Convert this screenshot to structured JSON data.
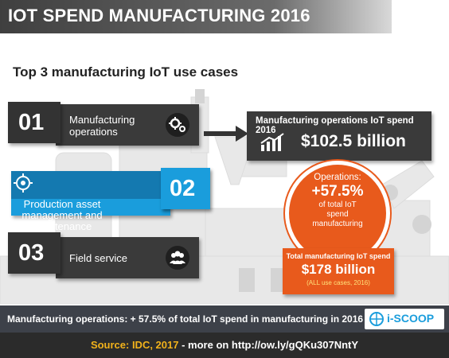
{
  "header": {
    "title": "IOT SPEND MANUFACTURING 2016"
  },
  "subtitle": "Top 3 manufacturing IoT use cases",
  "use_cases": [
    {
      "number": "01",
      "label_line1": "Manufacturing",
      "label_line2": "operations",
      "icon": "gears-icon"
    },
    {
      "number": "02",
      "label_line1": "Production asset",
      "label_line2": "management and",
      "label_line3": "maintenance",
      "icon": "target-icon"
    },
    {
      "number": "03",
      "label_line1": "Field service",
      "icon": "people-icon"
    }
  ],
  "ops_spend": {
    "label": "Manufacturing operations IoT spend 2016",
    "value": "$102.5 billion",
    "icon": "trend-chart-icon"
  },
  "operations_share": {
    "line1": "Operations:",
    "value": "+57.5%",
    "line2": "of total IoT",
    "line3": "spend",
    "line4": "manufacturing"
  },
  "total_spend": {
    "label": "Total manufacturing IoT spend",
    "value": "$178 billion",
    "note": "(ALL use cases, 2016)"
  },
  "banner": {
    "text": "Manufacturing operations: + 57.5% of total IoT spend in manufacturing in 2016",
    "logo_text": "i-SCOOP"
  },
  "footer": {
    "source": "Source: IDC, 2017",
    "more": " - more on http://ow.ly/gQKu307NntY"
  },
  "colors": {
    "blue": "#1a9ddc",
    "orange": "#e85a1c",
    "dark": "#3a3a3a",
    "footer_yellow": "#f2b21b"
  }
}
